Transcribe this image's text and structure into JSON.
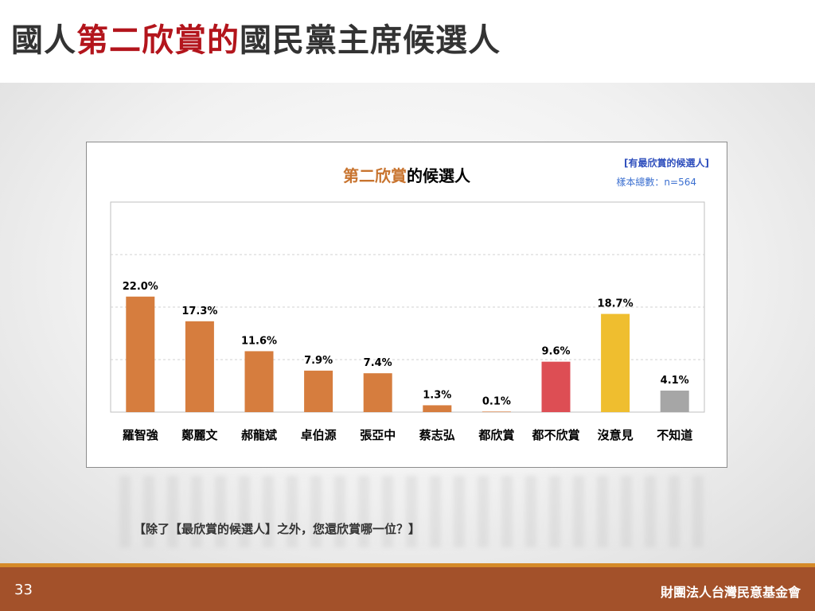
{
  "slide": {
    "title_prefix": "國人",
    "title_accent": "第二欣賞的",
    "title_suffix": "國民黨主席候選人",
    "question": "【除了【最欣賞的候選人】之外，您還欣賞哪一位？】",
    "page_number": "33",
    "organization": "財團法人台灣民意基金會"
  },
  "chart_notes": {
    "group": "[有最欣賞的候選人]",
    "sample": "樣本總數：n=564"
  },
  "chart_data": {
    "type": "bar",
    "title_accent": "第二欣賞",
    "title_rest": "的候選人",
    "categories": [
      "羅智強",
      "鄭麗文",
      "郝龍斌",
      "卓伯源",
      "張亞中",
      "蔡志弘",
      "都欣賞",
      "都不欣賞",
      "沒意見",
      "不知道"
    ],
    "values": [
      22.0,
      17.3,
      11.6,
      7.9,
      7.4,
      1.3,
      0.1,
      9.6,
      18.7,
      4.1
    ],
    "value_labels": [
      "22.0%",
      "17.3%",
      "11.6%",
      "7.9%",
      "7.4%",
      "1.3%",
      "0.1%",
      "9.6%",
      "18.7%",
      "4.1%"
    ],
    "colors": [
      "#d67d3e",
      "#d67d3e",
      "#d67d3e",
      "#d67d3e",
      "#d67d3e",
      "#d67d3e",
      "#d67d3e",
      "#dd4e54",
      "#efbe2f",
      "#a6a6a6"
    ],
    "ylim": [
      0,
      40
    ],
    "grid": true,
    "legend": "none"
  }
}
